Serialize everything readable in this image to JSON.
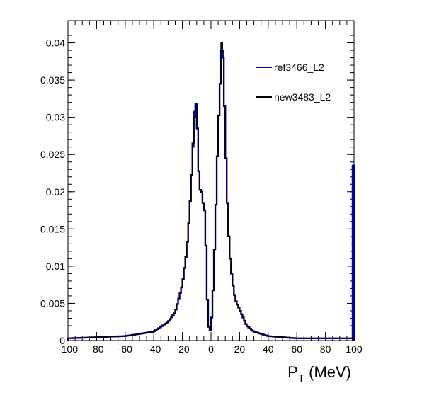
{
  "chart_data": {
    "type": "line",
    "title": "",
    "xlabel": "P",
    "xlabel_sub": "T",
    "xlabel_suffix": " (MeV)",
    "ylabel": "",
    "xlim": [
      -100,
      100
    ],
    "ylim": [
      0,
      0.043
    ],
    "xticks": [
      -100,
      -80,
      -60,
      -40,
      -20,
      0,
      20,
      40,
      60,
      80,
      100
    ],
    "xtick_labels": [
      "-100",
      "-80",
      "-60",
      "-40",
      "-20",
      "0",
      "20",
      "40",
      "60",
      "80",
      "100"
    ],
    "yticks": [
      0,
      0.005,
      0.01,
      0.015,
      0.02,
      0.025,
      0.03,
      0.035,
      0.04
    ],
    "ytick_labels": [
      "0",
      "0.005",
      "0.01",
      "0.015",
      "0.02",
      "0.025",
      "0.03",
      "0.035",
      "0.04"
    ],
    "legend_position": "top-right",
    "series": [
      {
        "name": "ref3466_L2",
        "color": "#0000cc",
        "x": [
          -100,
          -60,
          -40,
          -30,
          -25,
          -20,
          -17,
          -15,
          -13,
          -12,
          -11,
          -10,
          -9,
          -8,
          -7,
          -6,
          -5,
          -4,
          -3,
          -2,
          -1,
          0,
          1,
          2,
          3,
          4,
          5,
          6,
          7,
          8,
          9,
          10,
          11,
          12,
          13,
          15,
          17,
          20,
          25,
          30,
          40,
          60,
          99,
          100
        ],
        "y": [
          0.0003,
          0.0006,
          0.0012,
          0.0025,
          0.0038,
          0.0075,
          0.012,
          0.017,
          0.024,
          0.029,
          0.0325,
          0.031,
          0.026,
          0.0195,
          0.021,
          0.019,
          0.018,
          0.017,
          0.0085,
          0.0025,
          0.0012,
          0.0017,
          0.0045,
          0.009,
          0.0155,
          0.021,
          0.0285,
          0.032,
          0.037,
          0.041,
          0.035,
          0.028,
          0.021,
          0.016,
          0.012,
          0.008,
          0.0055,
          0.0042,
          0.002,
          0.0012,
          0.0006,
          0.0003,
          0.0003,
          0.0235
        ]
      },
      {
        "name": "new3483_L2",
        "color": "#000000",
        "x": [
          -100,
          -60,
          -40,
          -30,
          -25,
          -20,
          -17,
          -15,
          -13,
          -12,
          -11,
          -10,
          -9,
          -8,
          -7,
          -6,
          -5,
          -4,
          -3,
          -2,
          -1,
          0,
          1,
          2,
          3,
          4,
          5,
          6,
          7,
          8,
          9,
          10,
          11,
          12,
          13,
          15,
          17,
          20,
          25,
          30,
          40,
          60,
          99,
          100
        ],
        "y": [
          0.0003,
          0.0006,
          0.0012,
          0.0025,
          0.0038,
          0.0075,
          0.012,
          0.017,
          0.024,
          0.028,
          0.032,
          0.031,
          0.026,
          0.0195,
          0.021,
          0.019,
          0.018,
          0.017,
          0.0085,
          0.0025,
          0.0012,
          0.0017,
          0.0045,
          0.009,
          0.0155,
          0.021,
          0.0285,
          0.032,
          0.037,
          0.043,
          0.035,
          0.028,
          0.021,
          0.016,
          0.012,
          0.008,
          0.0055,
          0.0042,
          0.002,
          0.0012,
          0.0006,
          0.0003,
          0.0003,
          0.0
        ]
      }
    ]
  }
}
